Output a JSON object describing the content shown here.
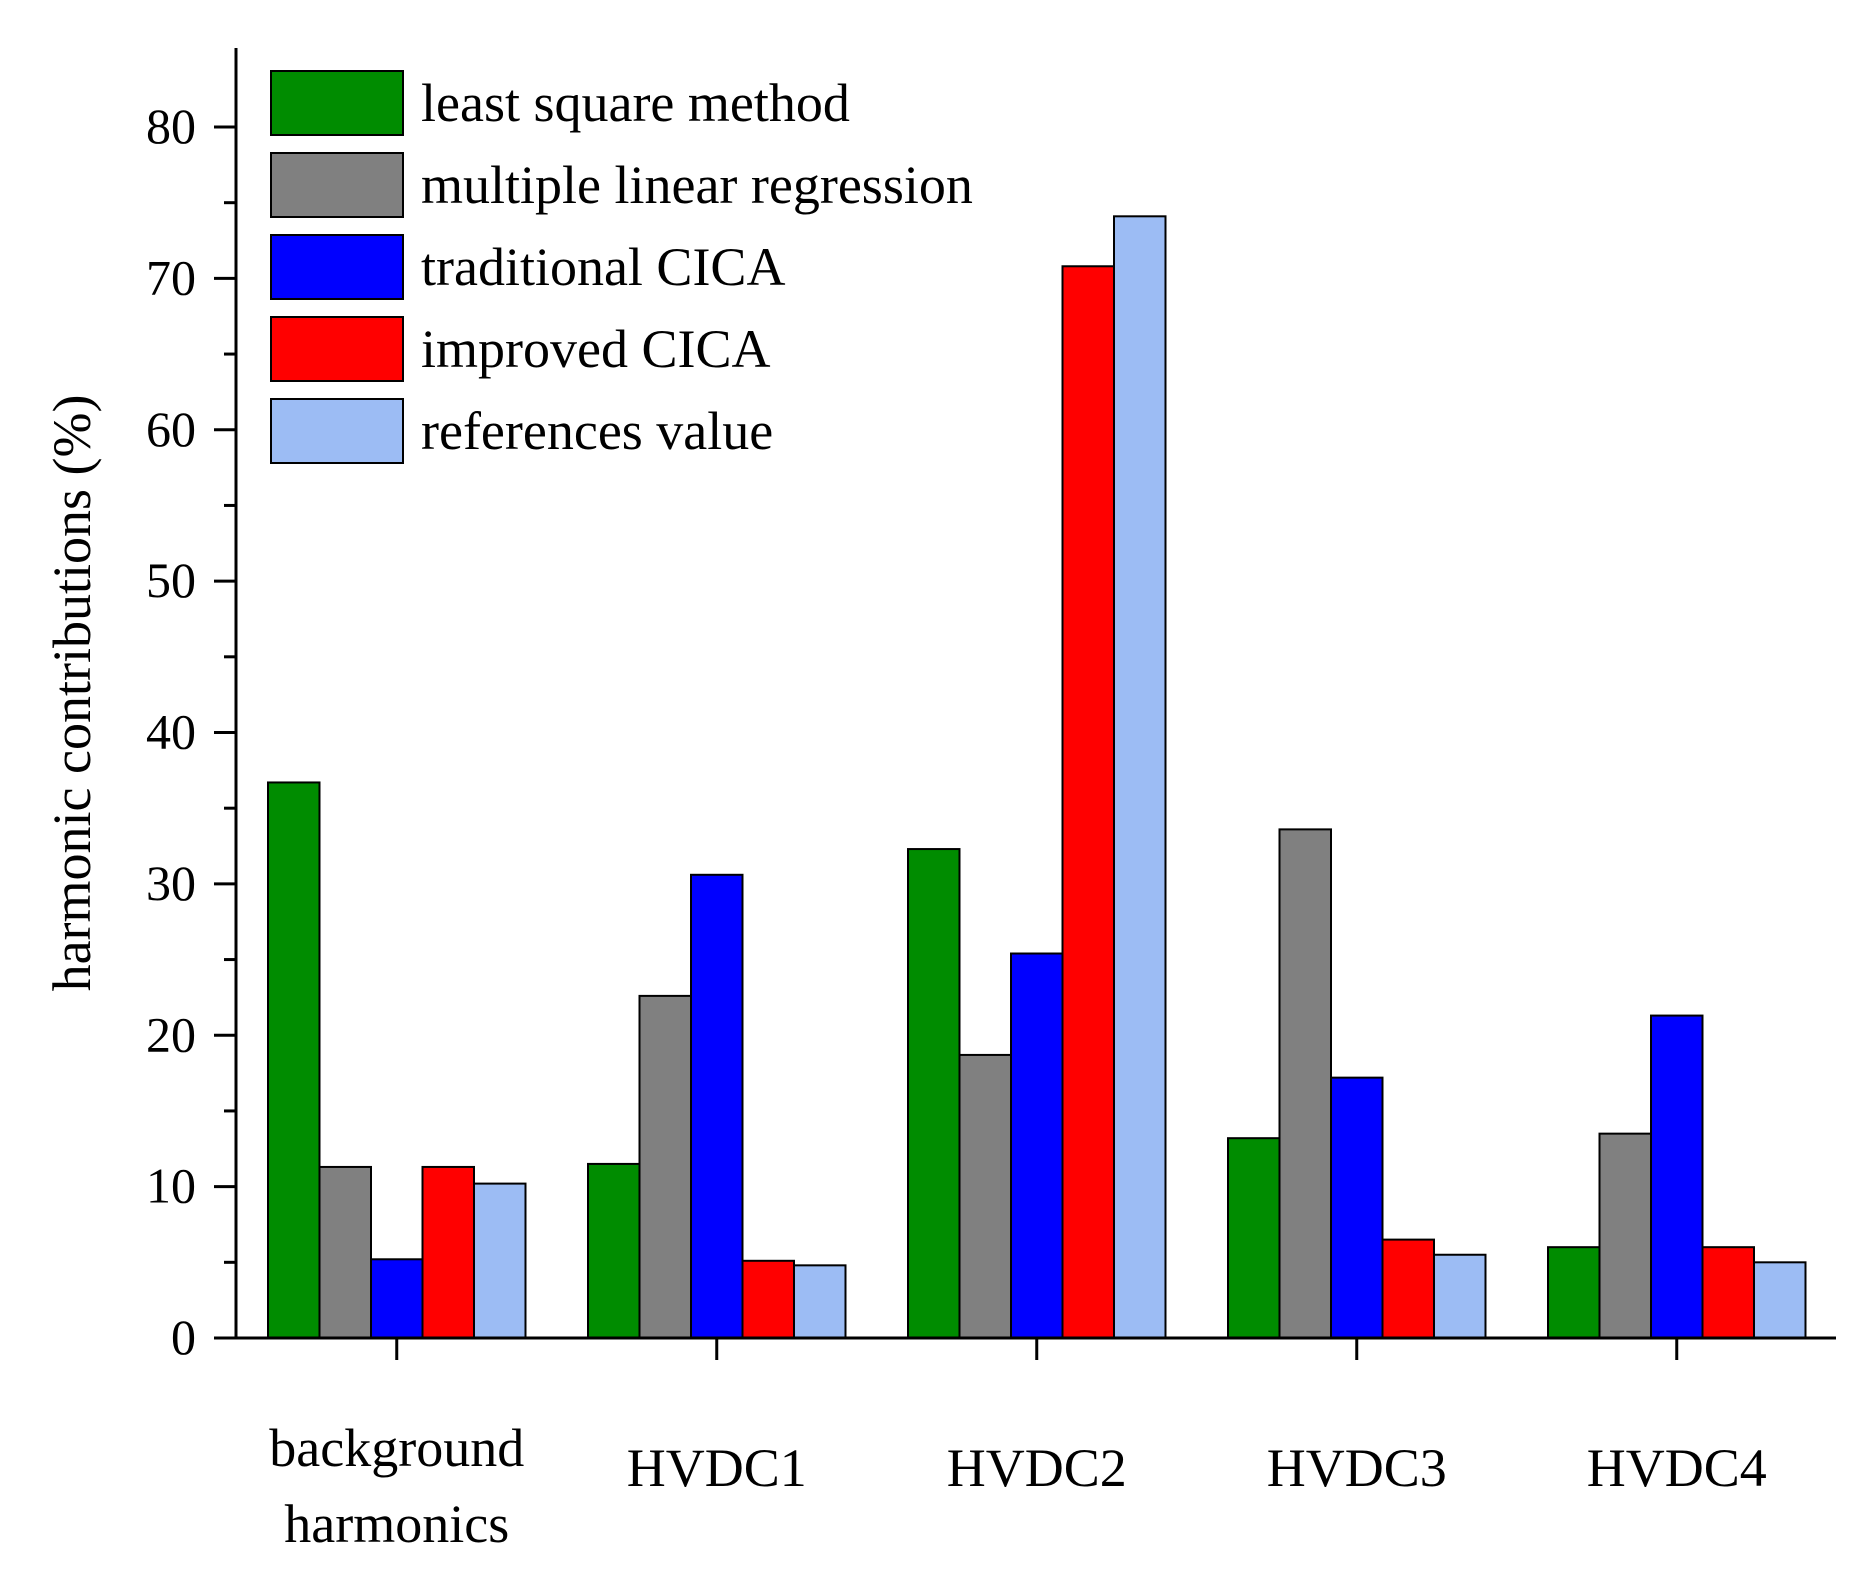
{
  "chart_data": {
    "type": "bar",
    "title": "",
    "xlabel": "",
    "ylabel": "harmonic contributions (%)",
    "ylim": [
      0,
      85
    ],
    "yticks": [
      0,
      10,
      20,
      30,
      40,
      50,
      60,
      70,
      80
    ],
    "grid": false,
    "legend_position": "top-left",
    "categories": [
      [
        "background",
        "harmonics"
      ],
      [
        "HVDC1"
      ],
      [
        "HVDC2"
      ],
      [
        "HVDC3"
      ],
      [
        "HVDC4"
      ]
    ],
    "series": [
      {
        "name": "least square method",
        "color": "#008c00",
        "values": [
          36.7,
          11.5,
          32.3,
          13.2,
          6.0
        ]
      },
      {
        "name": "multiple linear regression",
        "color": "#808080",
        "values": [
          11.3,
          22.6,
          18.7,
          33.6,
          13.5
        ]
      },
      {
        "name": "traditional CICA",
        "color": "#0000ff",
        "values": [
          5.2,
          30.6,
          25.4,
          17.2,
          21.3
        ]
      },
      {
        "name": "improved CICA",
        "color": "#ff0000",
        "values": [
          11.3,
          5.1,
          70.8,
          6.5,
          6.0
        ]
      },
      {
        "name": "references value",
        "color": "#9cbcf4",
        "values": [
          10.2,
          4.8,
          74.1,
          5.5,
          5.0
        ]
      }
    ]
  }
}
